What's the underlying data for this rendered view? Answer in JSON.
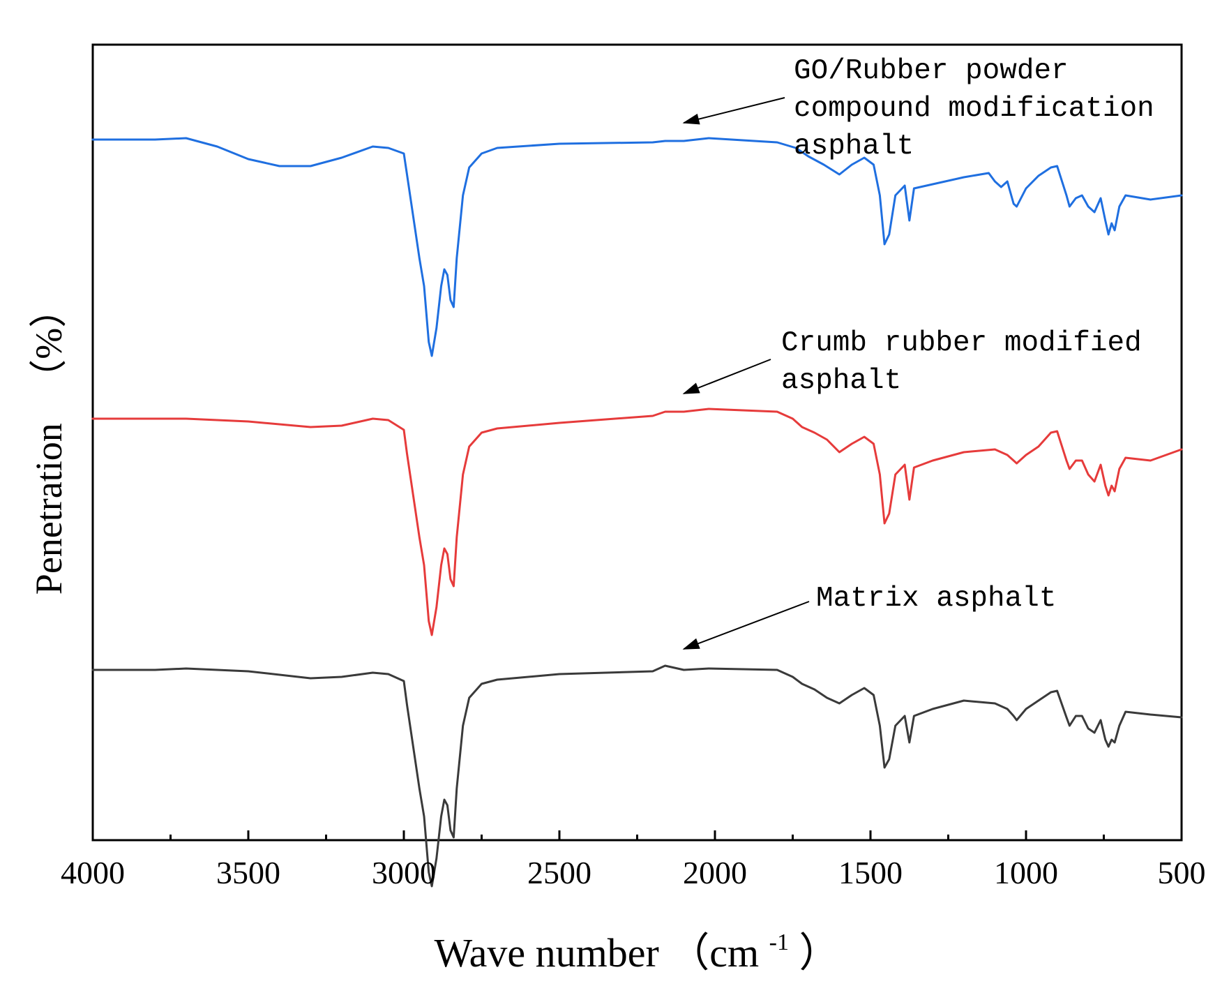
{
  "chart_data": {
    "type": "line",
    "title": "",
    "xlabel": "Wave number",
    "xlabel_unit_open": "（cm",
    "xlabel_unit_sup": "-1",
    "xlabel_unit_close": "）",
    "ylabel": "Penetration",
    "ylabel_unit": "（%）",
    "xlim": [
      4000,
      500
    ],
    "x_ticks": [
      4000,
      3500,
      3000,
      2500,
      2000,
      1500,
      1000,
      500
    ],
    "x_tick_labels": [
      "4000",
      "3500",
      "3000",
      "2500",
      "2000",
      "1500",
      "1000",
      "500"
    ],
    "yticks_shown": false,
    "grid": false,
    "legend": "none",
    "colors": {
      "go": "#1f6fe0",
      "crumb": "#e63b3b",
      "matrix": "#3a3a3a"
    },
    "series": [
      {
        "name": "GO/Rubber powder compound modification asphalt",
        "color": "#1f6fe0",
        "offset": 2.0,
        "points": [
          [
            4000,
            0.0
          ],
          [
            3800,
            0.0
          ],
          [
            3700,
            0.01
          ],
          [
            3600,
            -0.05
          ],
          [
            3500,
            -0.14
          ],
          [
            3400,
            -0.19
          ],
          [
            3300,
            -0.19
          ],
          [
            3200,
            -0.13
          ],
          [
            3100,
            -0.05
          ],
          [
            3050,
            -0.06
          ],
          [
            3000,
            -0.1
          ],
          [
            2990,
            -0.25
          ],
          [
            2970,
            -0.55
          ],
          [
            2950,
            -0.85
          ],
          [
            2935,
            -1.05
          ],
          [
            2920,
            -1.45
          ],
          [
            2910,
            -1.55
          ],
          [
            2895,
            -1.35
          ],
          [
            2880,
            -1.05
          ],
          [
            2870,
            -0.93
          ],
          [
            2860,
            -0.97
          ],
          [
            2850,
            -1.15
          ],
          [
            2840,
            -1.2
          ],
          [
            2830,
            -0.85
          ],
          [
            2810,
            -0.4
          ],
          [
            2790,
            -0.2
          ],
          [
            2750,
            -0.1
          ],
          [
            2700,
            -0.06
          ],
          [
            2500,
            -0.03
          ],
          [
            2200,
            -0.02
          ],
          [
            2160,
            -0.01
          ],
          [
            2100,
            -0.01
          ],
          [
            2020,
            0.01
          ],
          [
            1800,
            -0.02
          ],
          [
            1740,
            -0.06
          ],
          [
            1700,
            -0.12
          ],
          [
            1650,
            -0.18
          ],
          [
            1600,
            -0.25
          ],
          [
            1560,
            -0.18
          ],
          [
            1520,
            -0.13
          ],
          [
            1490,
            -0.18
          ],
          [
            1470,
            -0.4
          ],
          [
            1455,
            -0.75
          ],
          [
            1440,
            -0.68
          ],
          [
            1420,
            -0.4
          ],
          [
            1390,
            -0.33
          ],
          [
            1375,
            -0.58
          ],
          [
            1360,
            -0.35
          ],
          [
            1300,
            -0.32
          ],
          [
            1200,
            -0.27
          ],
          [
            1120,
            -0.24
          ],
          [
            1100,
            -0.3
          ],
          [
            1080,
            -0.34
          ],
          [
            1060,
            -0.3
          ],
          [
            1040,
            -0.46
          ],
          [
            1030,
            -0.48
          ],
          [
            1000,
            -0.35
          ],
          [
            960,
            -0.26
          ],
          [
            920,
            -0.2
          ],
          [
            900,
            -0.19
          ],
          [
            870,
            -0.4
          ],
          [
            860,
            -0.48
          ],
          [
            840,
            -0.42
          ],
          [
            820,
            -0.4
          ],
          [
            800,
            -0.48
          ],
          [
            780,
            -0.52
          ],
          [
            760,
            -0.42
          ],
          [
            745,
            -0.58
          ],
          [
            735,
            -0.68
          ],
          [
            725,
            -0.6
          ],
          [
            715,
            -0.65
          ],
          [
            700,
            -0.48
          ],
          [
            680,
            -0.4
          ],
          [
            600,
            -0.43
          ],
          [
            500,
            -0.4
          ]
        ]
      },
      {
        "name": "Crumb rubber modified asphalt",
        "color": "#e63b3b",
        "offset": 0.0,
        "points": [
          [
            4000,
            0.0
          ],
          [
            3800,
            0.0
          ],
          [
            3700,
            0.0
          ],
          [
            3500,
            -0.02
          ],
          [
            3300,
            -0.06
          ],
          [
            3200,
            -0.05
          ],
          [
            3100,
            0.0
          ],
          [
            3050,
            -0.01
          ],
          [
            3000,
            -0.08
          ],
          [
            2990,
            -0.25
          ],
          [
            2970,
            -0.55
          ],
          [
            2950,
            -0.85
          ],
          [
            2935,
            -1.05
          ],
          [
            2920,
            -1.45
          ],
          [
            2910,
            -1.55
          ],
          [
            2895,
            -1.35
          ],
          [
            2880,
            -1.05
          ],
          [
            2870,
            -0.93
          ],
          [
            2860,
            -0.97
          ],
          [
            2850,
            -1.15
          ],
          [
            2840,
            -1.2
          ],
          [
            2830,
            -0.85
          ],
          [
            2810,
            -0.4
          ],
          [
            2790,
            -0.2
          ],
          [
            2750,
            -0.1
          ],
          [
            2700,
            -0.07
          ],
          [
            2500,
            -0.03
          ],
          [
            2200,
            0.02
          ],
          [
            2160,
            0.05
          ],
          [
            2100,
            0.05
          ],
          [
            2020,
            0.07
          ],
          [
            1800,
            0.05
          ],
          [
            1750,
            0.0
          ],
          [
            1720,
            -0.06
          ],
          [
            1680,
            -0.1
          ],
          [
            1640,
            -0.15
          ],
          [
            1600,
            -0.24
          ],
          [
            1560,
            -0.18
          ],
          [
            1520,
            -0.13
          ],
          [
            1490,
            -0.18
          ],
          [
            1470,
            -0.4
          ],
          [
            1455,
            -0.75
          ],
          [
            1440,
            -0.68
          ],
          [
            1420,
            -0.4
          ],
          [
            1390,
            -0.33
          ],
          [
            1375,
            -0.58
          ],
          [
            1360,
            -0.35
          ],
          [
            1300,
            -0.3
          ],
          [
            1200,
            -0.24
          ],
          [
            1100,
            -0.22
          ],
          [
            1060,
            -0.26
          ],
          [
            1040,
            -0.3
          ],
          [
            1030,
            -0.32
          ],
          [
            1000,
            -0.26
          ],
          [
            960,
            -0.2
          ],
          [
            920,
            -0.1
          ],
          [
            900,
            -0.09
          ],
          [
            870,
            -0.3
          ],
          [
            860,
            -0.36
          ],
          [
            840,
            -0.3
          ],
          [
            820,
            -0.3
          ],
          [
            800,
            -0.4
          ],
          [
            780,
            -0.45
          ],
          [
            760,
            -0.33
          ],
          [
            745,
            -0.48
          ],
          [
            735,
            -0.55
          ],
          [
            725,
            -0.48
          ],
          [
            715,
            -0.52
          ],
          [
            700,
            -0.36
          ],
          [
            680,
            -0.28
          ],
          [
            600,
            -0.3
          ],
          [
            500,
            -0.22
          ]
        ]
      },
      {
        "name": "Matrix asphalt",
        "color": "#3a3a3a",
        "offset": -1.8,
        "points": [
          [
            4000,
            0.0
          ],
          [
            3800,
            0.0
          ],
          [
            3700,
            0.01
          ],
          [
            3500,
            -0.01
          ],
          [
            3300,
            -0.06
          ],
          [
            3200,
            -0.05
          ],
          [
            3100,
            -0.02
          ],
          [
            3050,
            -0.03
          ],
          [
            3000,
            -0.08
          ],
          [
            2990,
            -0.25
          ],
          [
            2970,
            -0.55
          ],
          [
            2950,
            -0.85
          ],
          [
            2935,
            -1.05
          ],
          [
            2920,
            -1.45
          ],
          [
            2910,
            -1.55
          ],
          [
            2895,
            -1.35
          ],
          [
            2880,
            -1.05
          ],
          [
            2870,
            -0.93
          ],
          [
            2860,
            -0.97
          ],
          [
            2850,
            -1.15
          ],
          [
            2840,
            -1.2
          ],
          [
            2830,
            -0.85
          ],
          [
            2810,
            -0.4
          ],
          [
            2790,
            -0.2
          ],
          [
            2750,
            -0.1
          ],
          [
            2700,
            -0.07
          ],
          [
            2500,
            -0.03
          ],
          [
            2200,
            -0.01
          ],
          [
            2160,
            0.03
          ],
          [
            2100,
            0.0
          ],
          [
            2020,
            0.01
          ],
          [
            1800,
            0.0
          ],
          [
            1750,
            -0.05
          ],
          [
            1720,
            -0.1
          ],
          [
            1680,
            -0.14
          ],
          [
            1640,
            -0.2
          ],
          [
            1600,
            -0.24
          ],
          [
            1560,
            -0.18
          ],
          [
            1520,
            -0.13
          ],
          [
            1490,
            -0.18
          ],
          [
            1470,
            -0.4
          ],
          [
            1455,
            -0.7
          ],
          [
            1440,
            -0.64
          ],
          [
            1420,
            -0.4
          ],
          [
            1390,
            -0.33
          ],
          [
            1375,
            -0.52
          ],
          [
            1360,
            -0.33
          ],
          [
            1300,
            -0.28
          ],
          [
            1200,
            -0.22
          ],
          [
            1100,
            -0.24
          ],
          [
            1060,
            -0.28
          ],
          [
            1040,
            -0.33
          ],
          [
            1030,
            -0.36
          ],
          [
            1000,
            -0.28
          ],
          [
            960,
            -0.22
          ],
          [
            920,
            -0.16
          ],
          [
            900,
            -0.15
          ],
          [
            870,
            -0.34
          ],
          [
            860,
            -0.4
          ],
          [
            840,
            -0.33
          ],
          [
            820,
            -0.33
          ],
          [
            800,
            -0.42
          ],
          [
            780,
            -0.45
          ],
          [
            760,
            -0.36
          ],
          [
            745,
            -0.5
          ],
          [
            735,
            -0.55
          ],
          [
            725,
            -0.5
          ],
          [
            715,
            -0.52
          ],
          [
            700,
            -0.4
          ],
          [
            680,
            -0.3
          ],
          [
            600,
            -0.32
          ],
          [
            500,
            -0.34
          ]
        ]
      }
    ],
    "annotations": [
      {
        "target": "GO/Rubber powder compound modification asphalt",
        "lines": [
          "GO/Rubber powder",
          "compound modification",
          "asphalt"
        ],
        "arrow_tip": [
          2100,
          2.12
        ]
      },
      {
        "target": "Crumb rubber modified asphalt",
        "lines": [
          "Crumb rubber modified",
          "asphalt"
        ],
        "arrow_tip": [
          2100,
          0.18
        ]
      },
      {
        "target": "Matrix asphalt",
        "lines": [
          "Matrix asphalt"
        ],
        "arrow_tip": [
          2100,
          -1.65
        ]
      }
    ]
  }
}
